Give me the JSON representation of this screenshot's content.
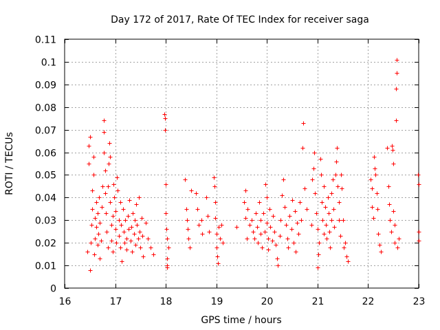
{
  "chart_data": {
    "type": "scatter",
    "title": "Day 172 of 2017, Rate Of TEC Index for receiver saga",
    "xlabel": "GPS time / hours",
    "ylabel": "ROTI / TECUs",
    "xlim": [
      16,
      23
    ],
    "ylim": [
      0,
      0.11
    ],
    "xticks": [
      "16",
      "17",
      "18",
      "19",
      "20",
      "21",
      "22",
      "23"
    ],
    "yticks": [
      "0",
      "0.01",
      "0.02",
      "0.03",
      "0.04",
      "0.05",
      "0.06",
      "0.07",
      "0.08",
      "0.09",
      "0.1",
      "0.11"
    ],
    "grid": true,
    "marker": "plus",
    "color": "#ff0000",
    "points": [
      [
        16.45,
        0.016
      ],
      [
        16.47,
        0.055
      ],
      [
        16.48,
        0.063
      ],
      [
        16.5,
        0.067
      ],
      [
        16.5,
        0.008
      ],
      [
        16.52,
        0.02
      ],
      [
        16.53,
        0.028
      ],
      [
        16.55,
        0.035
      ],
      [
        16.55,
        0.043
      ],
      [
        16.57,
        0.058
      ],
      [
        16.57,
        0.05
      ],
      [
        16.58,
        0.015
      ],
      [
        16.6,
        0.022
      ],
      [
        16.6,
        0.031
      ],
      [
        16.62,
        0.038
      ],
      [
        16.63,
        0.027
      ],
      [
        16.65,
        0.019
      ],
      [
        16.65,
        0.033
      ],
      [
        16.67,
        0.024
      ],
      [
        16.68,
        0.04
      ],
      [
        16.7,
        0.029
      ],
      [
        16.7,
        0.013
      ],
      [
        16.72,
        0.021
      ],
      [
        16.73,
        0.036
      ],
      [
        16.75,
        0.045
      ],
      [
        16.77,
        0.06
      ],
      [
        16.78,
        0.074
      ],
      [
        16.78,
        0.069
      ],
      [
        16.8,
        0.052
      ],
      [
        16.8,
        0.042
      ],
      [
        16.82,
        0.033
      ],
      [
        16.83,
        0.025
      ],
      [
        16.85,
        0.018
      ],
      [
        16.85,
        0.045
      ],
      [
        16.87,
        0.055
      ],
      [
        16.88,
        0.064
      ],
      [
        16.9,
        0.058
      ],
      [
        16.9,
        0.038
      ],
      [
        16.92,
        0.028
      ],
      [
        16.93,
        0.021
      ],
      [
        16.95,
        0.016
      ],
      [
        16.95,
        0.032
      ],
      [
        16.97,
        0.046
      ],
      [
        16.98,
        0.04
      ],
      [
        17.0,
        0.034
      ],
      [
        17.0,
        0.026
      ],
      [
        17.02,
        0.02
      ],
      [
        17.03,
        0.049
      ],
      [
        17.05,
        0.043
      ],
      [
        17.07,
        0.03
      ],
      [
        17.08,
        0.023
      ],
      [
        17.1,
        0.018
      ],
      [
        17.1,
        0.038
      ],
      [
        17.12,
        0.028
      ],
      [
        17.13,
        0.012
      ],
      [
        17.15,
        0.035
      ],
      [
        17.17,
        0.025
      ],
      [
        17.18,
        0.02
      ],
      [
        17.2,
        0.03
      ],
      [
        17.22,
        0.022
      ],
      [
        17.23,
        0.017
      ],
      [
        17.25,
        0.032
      ],
      [
        17.27,
        0.026
      ],
      [
        17.28,
        0.039
      ],
      [
        17.3,
        0.021
      ],
      [
        17.32,
        0.027
      ],
      [
        17.33,
        0.016
      ],
      [
        17.35,
        0.033
      ],
      [
        17.37,
        0.024
      ],
      [
        17.38,
        0.03
      ],
      [
        17.4,
        0.019
      ],
      [
        17.42,
        0.037
      ],
      [
        17.43,
        0.028
      ],
      [
        17.45,
        0.022
      ],
      [
        17.47,
        0.04
      ],
      [
        17.48,
        0.025
      ],
      [
        17.5,
        0.018
      ],
      [
        17.52,
        0.031
      ],
      [
        17.53,
        0.023
      ],
      [
        17.55,
        0.014
      ],
      [
        17.6,
        0.029
      ],
      [
        17.65,
        0.022
      ],
      [
        17.7,
        0.018
      ],
      [
        17.75,
        0.015
      ],
      [
        17.97,
        0.077
      ],
      [
        17.98,
        0.075
      ],
      [
        17.99,
        0.07
      ],
      [
        18.0,
        0.046
      ],
      [
        18.0,
        0.033
      ],
      [
        18.01,
        0.026
      ],
      [
        18.02,
        0.022
      ],
      [
        18.02,
        0.013
      ],
      [
        18.03,
        0.01
      ],
      [
        18.03,
        0.009
      ],
      [
        18.05,
        0.018
      ],
      [
        18.38,
        0.048
      ],
      [
        18.4,
        0.035
      ],
      [
        18.42,
        0.03
      ],
      [
        18.43,
        0.026
      ],
      [
        18.45,
        0.022
      ],
      [
        18.47,
        0.018
      ],
      [
        18.5,
        0.043
      ],
      [
        18.6,
        0.042
      ],
      [
        18.63,
        0.035
      ],
      [
        18.65,
        0.028
      ],
      [
        18.7,
        0.03
      ],
      [
        18.72,
        0.024
      ],
      [
        18.8,
        0.04
      ],
      [
        18.83,
        0.032
      ],
      [
        18.85,
        0.025
      ],
      [
        18.95,
        0.049
      ],
      [
        18.96,
        0.045
      ],
      [
        18.97,
        0.038
      ],
      [
        18.98,
        0.031
      ],
      [
        19.0,
        0.024
      ],
      [
        19.0,
        0.018
      ],
      [
        19.02,
        0.014
      ],
      [
        19.03,
        0.011
      ],
      [
        19.05,
        0.027
      ],
      [
        19.07,
        0.022
      ],
      [
        19.1,
        0.028
      ],
      [
        19.12,
        0.02
      ],
      [
        19.4,
        0.027
      ],
      [
        19.55,
        0.038
      ],
      [
        19.57,
        0.043
      ],
      [
        19.58,
        0.031
      ],
      [
        19.6,
        0.022
      ],
      [
        19.62,
        0.035
      ],
      [
        19.65,
        0.028
      ],
      [
        19.7,
        0.03
      ],
      [
        19.72,
        0.025
      ],
      [
        19.75,
        0.022
      ],
      [
        19.78,
        0.033
      ],
      [
        19.8,
        0.027
      ],
      [
        19.82,
        0.02
      ],
      [
        19.85,
        0.038
      ],
      [
        19.87,
        0.03
      ],
      [
        19.88,
        0.024
      ],
      [
        19.9,
        0.018
      ],
      [
        19.93,
        0.033
      ],
      [
        19.95,
        0.025
      ],
      [
        19.97,
        0.046
      ],
      [
        20.0,
        0.04
      ],
      [
        20.0,
        0.029
      ],
      [
        20.02,
        0.022
      ],
      [
        20.03,
        0.017
      ],
      [
        20.05,
        0.035
      ],
      [
        20.07,
        0.027
      ],
      [
        20.1,
        0.021
      ],
      [
        20.12,
        0.032
      ],
      [
        20.15,
        0.025
      ],
      [
        20.17,
        0.019
      ],
      [
        20.2,
        0.013
      ],
      [
        20.22,
        0.01
      ],
      [
        20.25,
        0.023
      ],
      [
        20.27,
        0.03
      ],
      [
        20.3,
        0.041
      ],
      [
        20.32,
        0.048
      ],
      [
        20.35,
        0.036
      ],
      [
        20.37,
        0.028
      ],
      [
        20.4,
        0.022
      ],
      [
        20.42,
        0.018
      ],
      [
        20.45,
        0.032
      ],
      [
        20.48,
        0.026
      ],
      [
        20.5,
        0.039
      ],
      [
        20.52,
        0.02
      ],
      [
        20.55,
        0.034
      ],
      [
        20.57,
        0.016
      ],
      [
        20.6,
        0.029
      ],
      [
        20.62,
        0.024
      ],
      [
        20.65,
        0.038
      ],
      [
        20.68,
        0.03
      ],
      [
        20.7,
        0.062
      ],
      [
        20.72,
        0.073
      ],
      [
        20.75,
        0.044
      ],
      [
        20.78,
        0.035
      ],
      [
        20.88,
        0.028
      ],
      [
        20.9,
        0.048
      ],
      [
        20.92,
        0.053
      ],
      [
        20.93,
        0.06
      ],
      [
        20.95,
        0.042
      ],
      [
        20.97,
        0.033
      ],
      [
        21.0,
        0.026
      ],
      [
        21.0,
        0.009
      ],
      [
        21.02,
        0.015
      ],
      [
        21.03,
        0.02
      ],
      [
        21.05,
        0.057
      ],
      [
        21.07,
        0.05
      ],
      [
        21.08,
        0.038
      ],
      [
        21.1,
        0.03
      ],
      [
        21.12,
        0.024
      ],
      [
        21.13,
        0.045
      ],
      [
        21.15,
        0.036
      ],
      [
        21.17,
        0.028
      ],
      [
        21.18,
        0.022
      ],
      [
        21.2,
        0.04
      ],
      [
        21.22,
        0.033
      ],
      [
        21.23,
        0.025
      ],
      [
        21.25,
        0.018
      ],
      [
        21.27,
        0.03
      ],
      [
        21.28,
        0.042
      ],
      [
        21.3,
        0.048
      ],
      [
        21.32,
        0.035
      ],
      [
        21.33,
        0.027
      ],
      [
        21.35,
        0.05
      ],
      [
        21.37,
        0.056
      ],
      [
        21.38,
        0.062
      ],
      [
        21.4,
        0.045
      ],
      [
        21.42,
        0.038
      ],
      [
        21.43,
        0.03
      ],
      [
        21.45,
        0.023
      ],
      [
        21.47,
        0.05
      ],
      [
        21.48,
        0.044
      ],
      [
        21.5,
        0.03
      ],
      [
        21.52,
        0.018
      ],
      [
        21.55,
        0.02
      ],
      [
        21.57,
        0.014
      ],
      [
        21.6,
        0.012
      ],
      [
        22.05,
        0.048
      ],
      [
        22.07,
        0.044
      ],
      [
        22.08,
        0.036
      ],
      [
        22.1,
        0.031
      ],
      [
        22.12,
        0.058
      ],
      [
        22.13,
        0.053
      ],
      [
        22.15,
        0.05
      ],
      [
        22.17,
        0.042
      ],
      [
        22.18,
        0.035
      ],
      [
        22.2,
        0.024
      ],
      [
        22.22,
        0.019
      ],
      [
        22.25,
        0.016
      ],
      [
        22.38,
        0.062
      ],
      [
        22.4,
        0.045
      ],
      [
        22.42,
        0.037
      ],
      [
        22.43,
        0.03
      ],
      [
        22.45,
        0.025
      ],
      [
        22.47,
        0.063
      ],
      [
        22.48,
        0.061
      ],
      [
        22.5,
        0.055
      ],
      [
        22.5,
        0.034
      ],
      [
        22.52,
        0.028
      ],
      [
        22.53,
        0.02
      ],
      [
        22.55,
        0.074
      ],
      [
        22.55,
        0.088
      ],
      [
        22.57,
        0.095
      ],
      [
        22.57,
        0.101
      ],
      [
        22.58,
        0.018
      ],
      [
        22.6,
        0.022
      ],
      [
        22.98,
        0.05
      ],
      [
        23.0,
        0.046
      ],
      [
        23.0,
        0.025
      ],
      [
        23.0,
        0.021
      ]
    ]
  }
}
